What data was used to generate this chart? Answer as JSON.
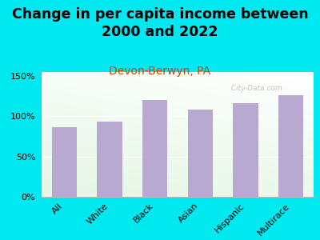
{
  "title": "Change in per capita income between\n2000 and 2022",
  "subtitle": "Devon-Berwyn, PA",
  "categories": [
    "All",
    "White",
    "Black",
    "Asian",
    "Hispanic",
    "Multirace"
  ],
  "values": [
    86,
    93,
    120,
    108,
    116,
    126
  ],
  "bar_color": "#b8a9d0",
  "background_outer": "#00e8f0",
  "title_fontsize": 12.5,
  "subtitle_fontsize": 10,
  "subtitle_color": "#cc4400",
  "tick_label_fontsize": 8,
  "ylim": [
    0,
    155
  ],
  "yticks": [
    0,
    50,
    100,
    150
  ],
  "watermark": "  City-Data.com",
  "watermark_color": "#aaaaaa"
}
